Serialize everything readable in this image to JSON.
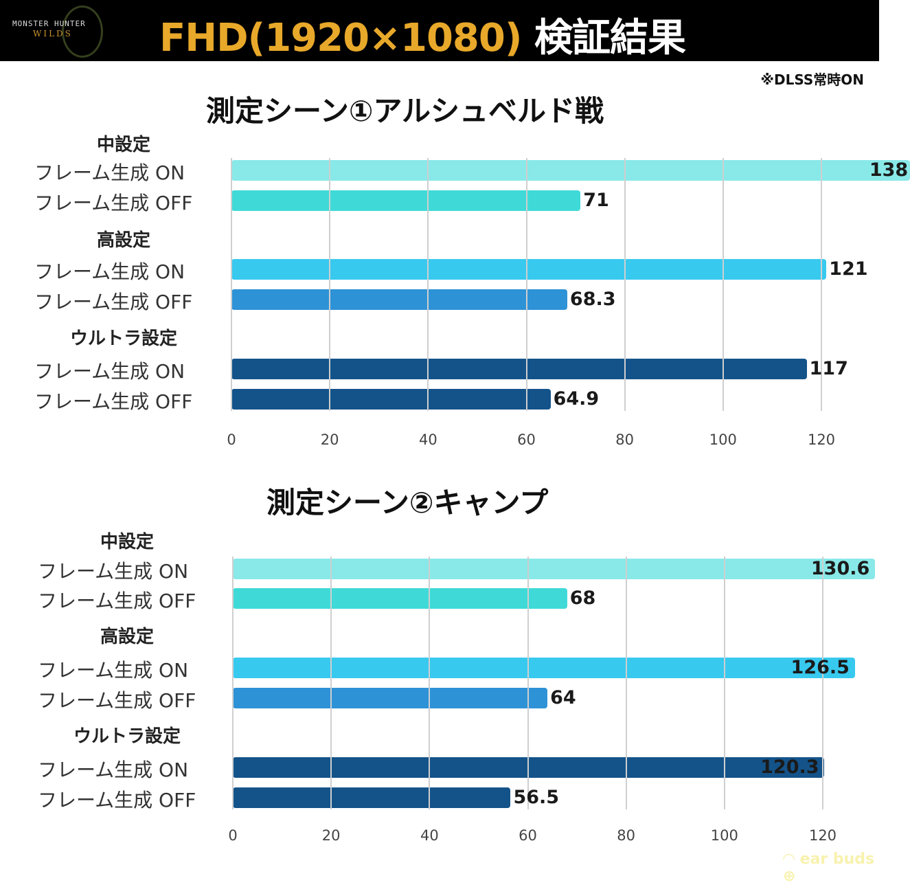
{
  "header": {
    "logo_text": "MONSTER HUNTER WILDS",
    "title_main": "FHD(1920×1080)",
    "title_suffix": "検証結果"
  },
  "note": "※DLSS常時ON",
  "watermark": "ear buds",
  "colors": {
    "mid_on": "#88e9e8",
    "mid_off": "#3fdad7",
    "high_on": "#38c9ef",
    "high_off": "#2e92d6",
    "ultra": "#145389"
  },
  "chart_data": [
    {
      "type": "bar",
      "orientation": "horizontal",
      "title": "測定シーン①アルシュベルド戦",
      "xlim": [
        0,
        128
      ],
      "xticks": [
        0,
        20,
        40,
        60,
        80,
        100,
        120
      ],
      "grid": true,
      "groups": [
        {
          "name": "中設定",
          "rows": [
            {
              "label": "フレーム生成  ON",
              "value": 138,
              "color": "#88e9e8"
            },
            {
              "label": "フレーム生成  OFF",
              "value": 71,
              "color": "#3fdad7"
            }
          ]
        },
        {
          "name": "高設定",
          "rows": [
            {
              "label": "フレーム生成  ON",
              "value": 121,
              "color": "#38c9ef"
            },
            {
              "label": "フレーム生成  OFF",
              "value": 68.3,
              "color": "#2e92d6"
            }
          ]
        },
        {
          "name": "ウルトラ設定",
          "rows": [
            {
              "label": "フレーム生成  ON",
              "value": 117,
              "color": "#145389"
            },
            {
              "label": "フレーム生成  OFF",
              "value": 64.9,
              "color": "#145389"
            }
          ]
        }
      ]
    },
    {
      "type": "bar",
      "orientation": "horizontal",
      "title": "測定シーン②キャンプ",
      "xlim": [
        0,
        128
      ],
      "xticks": [
        0,
        20,
        40,
        60,
        80,
        100,
        120
      ],
      "grid": true,
      "groups": [
        {
          "name": "中設定",
          "rows": [
            {
              "label": "フレーム生成  ON",
              "value": 130.6,
              "color": "#88e9e8"
            },
            {
              "label": "フレーム生成  OFF",
              "value": 68,
              "color": "#3fdad7"
            }
          ]
        },
        {
          "name": "高設定",
          "rows": [
            {
              "label": "フレーム生成  ON",
              "value": 126.5,
              "color": "#38c9ef"
            },
            {
              "label": "フレーム生成  OFF",
              "value": 64,
              "color": "#2e92d6"
            }
          ]
        },
        {
          "name": "ウルトラ設定",
          "rows": [
            {
              "label": "フレーム生成  ON",
              "value": 120.3,
              "color": "#145389"
            },
            {
              "label": "フレーム生成  OFF",
              "value": 56.5,
              "color": "#145389"
            }
          ]
        }
      ]
    }
  ]
}
